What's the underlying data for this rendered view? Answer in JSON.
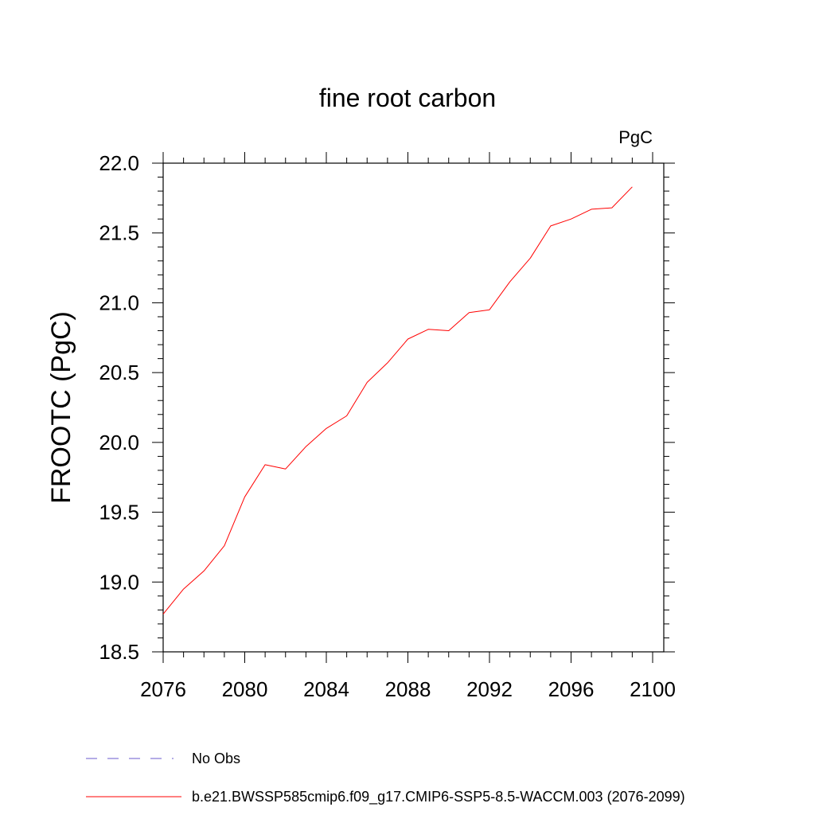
{
  "chart_data": {
    "type": "line",
    "title": "fine root carbon",
    "units_label": "PgC",
    "xlabel": "",
    "ylabel": "FROOTC  (PgC)",
    "xlim": [
      2076,
      2100
    ],
    "ylim": [
      18.5,
      22.0
    ],
    "x_ticks": [
      2076,
      2080,
      2084,
      2088,
      2092,
      2096,
      2100
    ],
    "y_ticks": [
      "18.5",
      "19.0",
      "19.5",
      "20.0",
      "20.5",
      "21.0",
      "21.5",
      "22.0"
    ],
    "series": [
      {
        "name": "b.e21.BWSSP585cmip6.f09_g17.CMIP6-SSP5-8.5-WACCM.003 (2076-2099)",
        "color": "#ff0000",
        "style": "solid",
        "x": [
          2076,
          2077,
          2078,
          2079,
          2080,
          2081,
          2082,
          2083,
          2084,
          2085,
          2086,
          2087,
          2088,
          2089,
          2090,
          2091,
          2092,
          2093,
          2094,
          2095,
          2096,
          2097,
          2098,
          2099
        ],
        "y": [
          18.77,
          18.95,
          19.08,
          19.26,
          19.61,
          19.84,
          19.81,
          19.97,
          20.1,
          20.19,
          20.43,
          20.57,
          20.74,
          20.81,
          20.8,
          20.93,
          20.95,
          21.15,
          21.32,
          21.55,
          21.6,
          21.67,
          21.68,
          21.83
        ]
      }
    ],
    "legend": {
      "placement": "bottom",
      "entries": [
        {
          "label": "No Obs",
          "color": "#6a5acd",
          "style": "dashed"
        },
        {
          "label": "b.e21.BWSSP585cmip6.f09_g17.CMIP6-SSP5-8.5-WACCM.003 (2076-2099)",
          "color": "#ff0000",
          "style": "solid"
        }
      ]
    },
    "grid": false
  }
}
